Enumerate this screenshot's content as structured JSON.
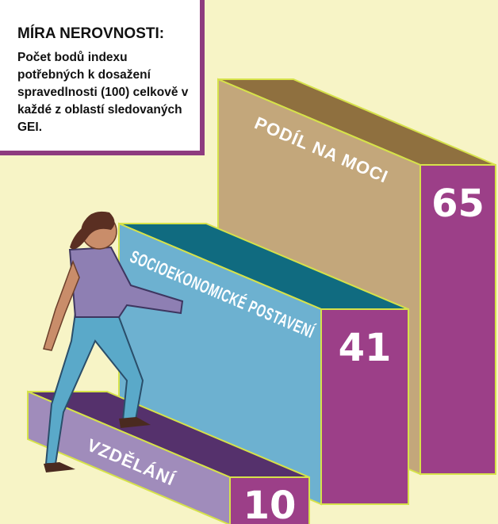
{
  "chart_data": {
    "type": "bar3d",
    "title": "MÍRA NEROVNOSTI:",
    "subtitle": "Počet bodů indexu potřebných k dosažení spravedlnosti (100) celkově v každé z oblastí sledovaných GEI.",
    "categories": [
      "VZDĚLÁNÍ",
      "SOCIOEKONOMICKÉ POSTAVENÍ",
      "PODÍL NA MOCI"
    ],
    "values": [
      10,
      41,
      65
    ],
    "side_colors": [
      "#a08cbb",
      "#6db1d0",
      "#c3a77b"
    ],
    "top_colors": [
      "#55316c",
      "#106b80",
      "#8f703f"
    ],
    "front_color": "#9c3f88"
  }
}
